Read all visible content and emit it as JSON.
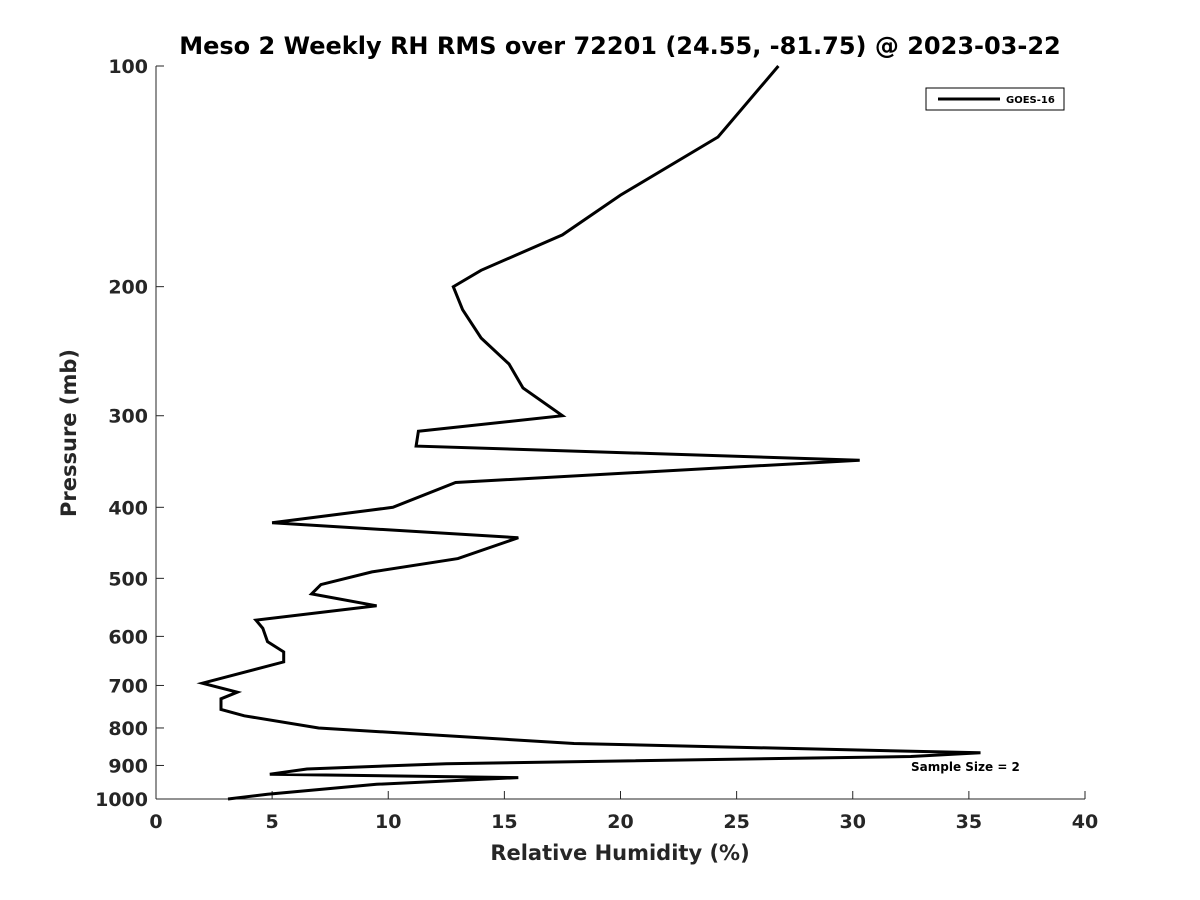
{
  "chart_data": {
    "type": "line",
    "title": "Meso 2 Weekly RH RMS over 72201 (24.55, -81.75) @ 2023-03-22",
    "xlabel": "Relative Humidity (%)",
    "ylabel": "Pressure (mb)",
    "xlim": [
      0,
      40
    ],
    "ylim": [
      100,
      1000
    ],
    "y_scale": "log",
    "y_reversed": true,
    "xticks": [
      "0",
      "5",
      "10",
      "15",
      "20",
      "25",
      "30",
      "35",
      "40"
    ],
    "yticks": [
      "100",
      "200",
      "300",
      "400",
      "500",
      "600",
      "700",
      "800",
      "900",
      "1000"
    ],
    "grid": false,
    "legend_position": "top-right",
    "series": [
      {
        "name": "GOES-16",
        "color": "#000000",
        "points": [
          [
            26.8,
            100
          ],
          [
            24.2,
            125
          ],
          [
            20.0,
            150
          ],
          [
            17.5,
            170
          ],
          [
            14.0,
            190
          ],
          [
            12.8,
            200
          ],
          [
            13.2,
            215
          ],
          [
            14.0,
            235
          ],
          [
            15.2,
            255
          ],
          [
            15.8,
            275
          ],
          [
            17.5,
            300
          ],
          [
            11.3,
            315
          ],
          [
            11.2,
            330
          ],
          [
            30.3,
            345
          ],
          [
            12.9,
            370
          ],
          [
            10.2,
            400
          ],
          [
            5.0,
            420
          ],
          [
            15.6,
            440
          ],
          [
            13.0,
            470
          ],
          [
            9.3,
            490
          ],
          [
            7.1,
            510
          ],
          [
            6.7,
            525
          ],
          [
            9.5,
            545
          ],
          [
            4.3,
            570
          ],
          [
            4.6,
            585
          ],
          [
            4.8,
            610
          ],
          [
            5.5,
            630
          ],
          [
            5.5,
            650
          ],
          [
            2.0,
            695
          ],
          [
            3.5,
            715
          ],
          [
            2.8,
            730
          ],
          [
            2.8,
            755
          ],
          [
            3.8,
            770
          ],
          [
            7.0,
            800
          ],
          [
            18.0,
            840
          ],
          [
            35.5,
            865
          ],
          [
            32.5,
            875
          ],
          [
            12.5,
            895
          ],
          [
            6.5,
            910
          ],
          [
            4.9,
            925
          ],
          [
            15.6,
            935
          ],
          [
            9.5,
            955
          ],
          [
            4.8,
            985
          ],
          [
            3.1,
            1000
          ]
        ]
      }
    ],
    "annotations": [
      "Sample Size = 2"
    ]
  }
}
